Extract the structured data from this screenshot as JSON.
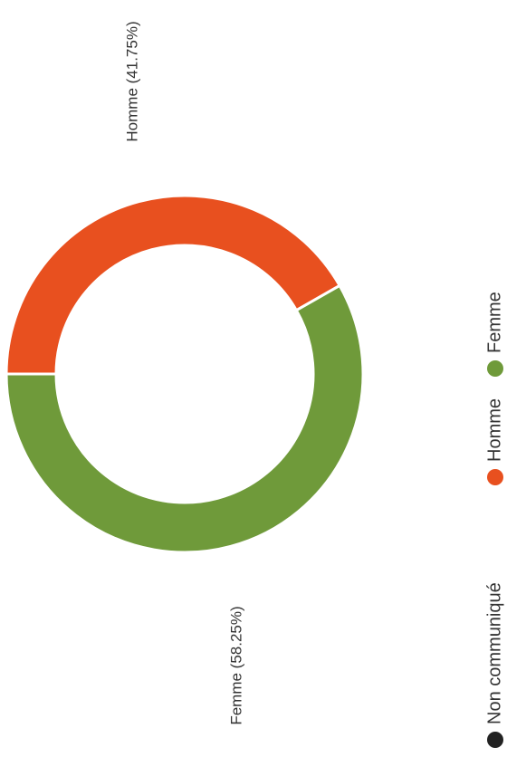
{
  "chart_data": {
    "type": "pie",
    "variant": "donut",
    "orientation": "rotated 90 degrees counter-clockwise",
    "title": "",
    "categories": [
      "Non communiqué",
      "Homme",
      "Femme"
    ],
    "values": [
      0,
      41.75,
      58.25
    ],
    "unit": "%",
    "data_labels": {
      "homme": "Homme (41.75%)",
      "femme": "Femme (58.25%)"
    },
    "legend": {
      "position": "bottom",
      "items": [
        {
          "label": "Non communiqué",
          "color": "#222222"
        },
        {
          "label": "Homme",
          "color": "#e8501f"
        },
        {
          "label": "Femme",
          "color": "#6f9a3a"
        }
      ]
    },
    "colors": {
      "homme": "#e8501f",
      "femme": "#6f9a3a",
      "non_communique": "#222222"
    }
  }
}
